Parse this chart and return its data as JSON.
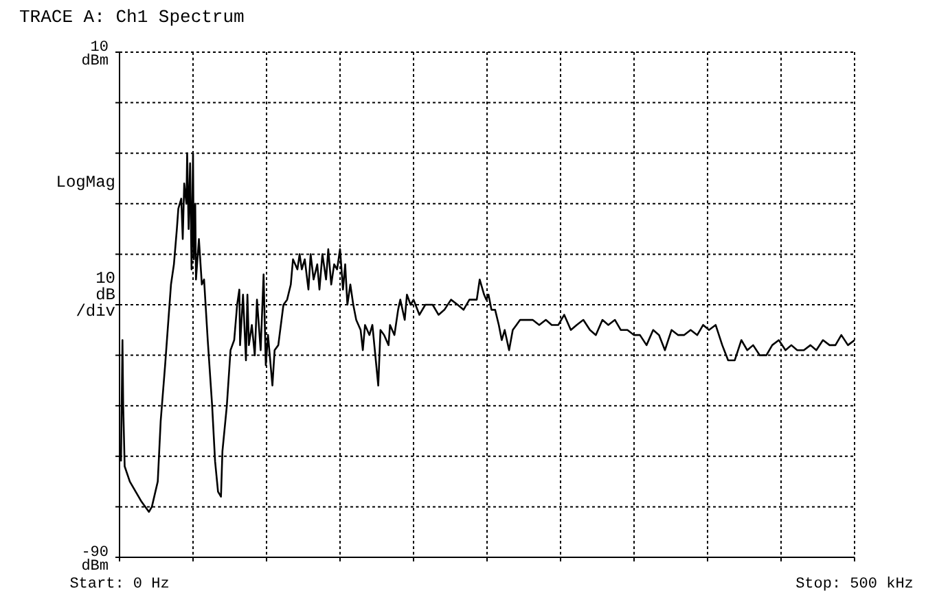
{
  "chart_data": {
    "type": "line",
    "title": "TRACE A: Ch1 Spectrum",
    "annotations": [
      "LogMag"
    ],
    "ylabel": "10 dB /div",
    "xlim": [
      0,
      500
    ],
    "ylim": [
      -90,
      10
    ],
    "xticks": [
      {
        "value": 0,
        "label": "Start: 0 Hz"
      },
      {
        "value": 50,
        "label": null
      },
      {
        "value": 100,
        "label": null
      },
      {
        "value": 150,
        "label": null
      },
      {
        "value": 200,
        "label": null
      },
      {
        "value": 250,
        "label": null
      },
      {
        "value": 300,
        "label": null
      },
      {
        "value": 350,
        "label": null
      },
      {
        "value": 400,
        "label": null
      },
      {
        "value": 450,
        "label": null
      },
      {
        "value": 500,
        "label": "Stop: 500 kHz"
      }
    ],
    "yticks": [
      {
        "value": 10,
        "label": "10 dBm"
      },
      {
        "value": 0,
        "label": null
      },
      {
        "value": -10,
        "label": null
      },
      {
        "value": -20,
        "label": null
      },
      {
        "value": -30,
        "label": null
      },
      {
        "value": -40,
        "label": null
      },
      {
        "value": -50,
        "label": null
      },
      {
        "value": -60,
        "label": null
      },
      {
        "value": -70,
        "label": null
      },
      {
        "value": -80,
        "label": null
      },
      {
        "value": -90,
        "label": "-90 dBm"
      }
    ],
    "grid": true,
    "line_style": "solid",
    "series": [
      {
        "color": "#000000",
        "x": [
          1,
          2,
          2.5,
          3.5,
          7,
          11,
          15,
          20,
          22,
          26,
          28,
          31,
          33,
          35,
          37,
          39,
          40,
          42,
          43,
          44,
          45.5,
          46,
          47,
          48,
          49,
          50,
          50.5,
          51.5,
          52,
          54,
          56,
          57.5,
          60,
          63,
          65,
          67,
          69,
          70,
          73,
          75.5,
          78,
          80,
          81.5,
          82,
          84,
          86,
          87,
          88,
          90,
          92,
          93.5,
          96,
          98,
          99.5,
          101,
          104,
          105.5,
          108,
          111.5,
          114,
          116.5,
          118,
          121,
          122.5,
          124,
          126,
          128.5,
          130,
          132,
          134.5,
          136,
          138,
          140.5,
          142,
          144,
          146,
          148,
          150,
          152,
          153.5,
          155,
          157,
          159,
          161,
          164,
          165.5,
          167,
          170,
          172,
          174,
          176,
          177.5,
          180,
          183,
          184,
          187,
          189.5,
          191,
          194,
          195.5,
          198,
          200,
          204,
          208,
          213,
          217,
          221,
          225.5,
          230,
          234,
          238,
          243,
          245,
          248,
          249.5,
          251,
          253,
          255.5,
          258,
          260,
          262,
          265,
          267.5,
          270,
          272.5,
          277,
          281,
          285.5,
          290,
          294,
          298.5,
          302.5,
          307,
          311,
          315.5,
          320,
          324,
          328.5,
          332.5,
          337,
          341,
          345.5,
          350,
          354,
          358.5,
          363,
          367,
          371,
          375.5,
          380,
          384,
          388.5,
          393,
          397,
          401,
          405.5,
          410,
          414,
          418.5,
          423,
          427,
          431,
          435.5,
          440,
          444,
          448.5,
          453,
          457,
          461,
          465.5,
          470,
          474,
          478.5,
          483,
          487,
          491,
          495.5,
          500
        ],
        "values": [
          -71,
          -47,
          -60,
          -72,
          -75,
          -77,
          -79,
          -81,
          -80,
          -75,
          -63,
          -52,
          -44,
          -36,
          -32,
          -25,
          -21,
          -19,
          -27,
          -16,
          -20,
          -10,
          -25,
          -12,
          -33,
          -10,
          -31,
          -20,
          -35,
          -27,
          -36,
          -35,
          -47,
          -60,
          -71,
          -77,
          -78,
          -69,
          -60,
          -49,
          -47,
          -40,
          -37,
          -48,
          -38,
          -51,
          -38,
          -48,
          -44,
          -50,
          -39,
          -49,
          -34,
          -52,
          -46,
          -56,
          -49,
          -48,
          -40,
          -39,
          -36,
          -31,
          -33,
          -30,
          -33,
          -31,
          -37,
          -30,
          -35,
          -32,
          -37,
          -30,
          -35,
          -29,
          -36,
          -32,
          -33,
          -29,
          -37,
          -32,
          -40,
          -36,
          -40,
          -43,
          -45,
          -49,
          -44,
          -46,
          -44,
          -50,
          -56,
          -45,
          -46,
          -48,
          -44,
          -46,
          -41,
          -39,
          -43,
          -38,
          -40,
          -39,
          -42,
          -40,
          -40,
          -42,
          -41,
          -39,
          -40,
          -41,
          -39,
          -39,
          -35,
          -38,
          -39,
          -38,
          -41,
          -41,
          -44,
          -47,
          -45,
          -49,
          -45,
          -44,
          -43,
          -43,
          -43,
          -44,
          -43,
          -44,
          -44,
          -42,
          -45,
          -44,
          -43,
          -45,
          -46,
          -43,
          -44,
          -43,
          -45,
          -45,
          -46,
          -46,
          -48,
          -45,
          -46,
          -49,
          -45,
          -46,
          -46,
          -45,
          -46,
          -44,
          -45,
          -44,
          -48,
          -51,
          -51,
          -47,
          -49,
          -48,
          -50,
          -50,
          -48,
          -47,
          -49,
          -48,
          -49,
          -49,
          -48,
          -49,
          -47,
          -48,
          -48,
          -46,
          -48,
          -47
        ]
      }
    ]
  }
}
